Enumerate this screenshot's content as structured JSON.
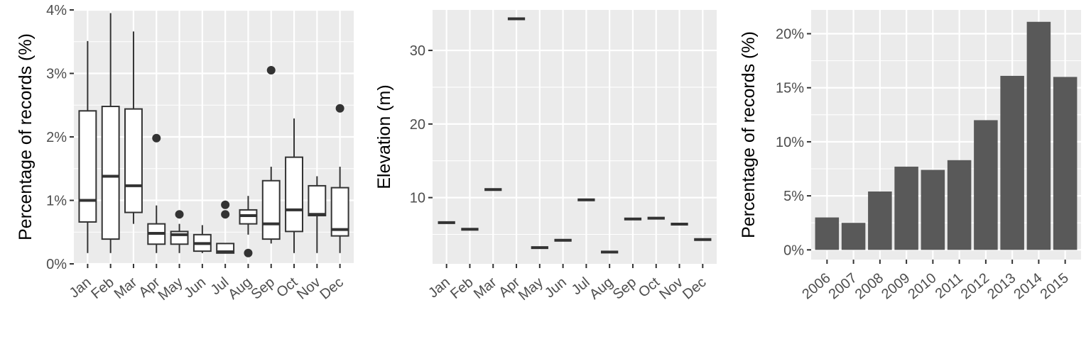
{
  "colors": {
    "panel_bg": "#ebebeb",
    "grid": "#ffffff",
    "box_line": "#333333",
    "bar_fill": "#595959",
    "tick_text": "#4d4d4d"
  },
  "chart_data": [
    {
      "type": "boxplot",
      "ylabel": "Percentage of records (%)",
      "xlabel": "",
      "ylim": [
        0,
        4.0
      ],
      "yticks": [
        0,
        1,
        2,
        3,
        4
      ],
      "ytick_labels": [
        "0%",
        "1%",
        "2%",
        "3%",
        "4%"
      ],
      "grid": true,
      "categories": [
        "Jan",
        "Feb",
        "Mar",
        "Apr",
        "May",
        "Jun",
        "Jul",
        "Aug",
        "Sep",
        "Oct",
        "Nov",
        "Dec"
      ],
      "boxes": [
        {
          "label": "Jan",
          "low": 0.17,
          "q1": 0.66,
          "median": 1.0,
          "q3": 2.41,
          "high": 3.51,
          "outliers": []
        },
        {
          "label": "Feb",
          "low": 0.17,
          "q1": 0.39,
          "median": 1.38,
          "q3": 2.48,
          "high": 3.95,
          "outliers": []
        },
        {
          "label": "Mar",
          "low": 0.63,
          "q1": 0.81,
          "median": 1.23,
          "q3": 2.44,
          "high": 3.66,
          "outliers": []
        },
        {
          "label": "Apr",
          "low": 0.17,
          "q1": 0.31,
          "median": 0.48,
          "q3": 0.63,
          "high": 0.92,
          "outliers": [
            1.98
          ]
        },
        {
          "label": "May",
          "low": 0.17,
          "q1": 0.31,
          "median": 0.46,
          "q3": 0.51,
          "high": 0.63,
          "outliers": [
            0.78
          ]
        },
        {
          "label": "Jun",
          "low": 0.17,
          "q1": 0.2,
          "median": 0.32,
          "q3": 0.46,
          "high": 0.61,
          "outliers": []
        },
        {
          "label": "Jul",
          "low": 0.17,
          "q1": 0.17,
          "median": 0.19,
          "q3": 0.32,
          "high": 0.32,
          "outliers": [
            0.78,
            0.93
          ]
        },
        {
          "label": "Aug",
          "low": 0.46,
          "q1": 0.63,
          "median": 0.76,
          "q3": 0.85,
          "high": 1.07,
          "outliers": [
            0.17
          ]
        },
        {
          "label": "Sep",
          "low": 0.32,
          "q1": 0.39,
          "median": 0.63,
          "q3": 1.31,
          "high": 1.53,
          "outliers": [
            3.05
          ]
        },
        {
          "label": "Oct",
          "low": 0.17,
          "q1": 0.51,
          "median": 0.85,
          "q3": 1.68,
          "high": 2.29,
          "outliers": []
        },
        {
          "label": "Nov",
          "low": 0.17,
          "q1": 0.76,
          "median": 0.78,
          "q3": 1.23,
          "high": 1.38,
          "outliers": []
        },
        {
          "label": "Dec",
          "low": 0.17,
          "q1": 0.44,
          "median": 0.54,
          "q3": 1.2,
          "high": 1.53,
          "outliers": [
            2.45
          ]
        }
      ]
    },
    {
      "type": "boxplot",
      "ylabel": "Elevation (m)",
      "xlabel": "",
      "ylim": [
        1,
        35.5
      ],
      "yticks": [
        10,
        20,
        30
      ],
      "ytick_labels": [
        "10",
        "20",
        "30"
      ],
      "grid": true,
      "categories": [
        "Jan",
        "Feb",
        "Mar",
        "Apr",
        "May",
        "Jun",
        "Jul",
        "Aug",
        "Sep",
        "Oct",
        "Nov",
        "Dec"
      ],
      "values": [
        6.6,
        5.7,
        11.1,
        34.3,
        3.2,
        4.2,
        9.7,
        2.6,
        7.1,
        7.2,
        6.4,
        4.3
      ]
    },
    {
      "type": "bar",
      "ylabel": "Percentage of records (%)",
      "xlabel": "",
      "ylim": [
        -0.9,
        22.2
      ],
      "yticks": [
        0,
        5,
        10,
        15,
        20
      ],
      "ytick_labels": [
        "0%",
        "5%",
        "10%",
        "15%",
        "20%"
      ],
      "grid": true,
      "categories": [
        "2006",
        "2007",
        "2008",
        "2009",
        "2010",
        "2011",
        "2012",
        "2013",
        "2014",
        "2015"
      ],
      "values": [
        3.0,
        2.5,
        5.4,
        7.7,
        7.4,
        8.3,
        12.0,
        16.1,
        21.1,
        16.0
      ]
    }
  ]
}
